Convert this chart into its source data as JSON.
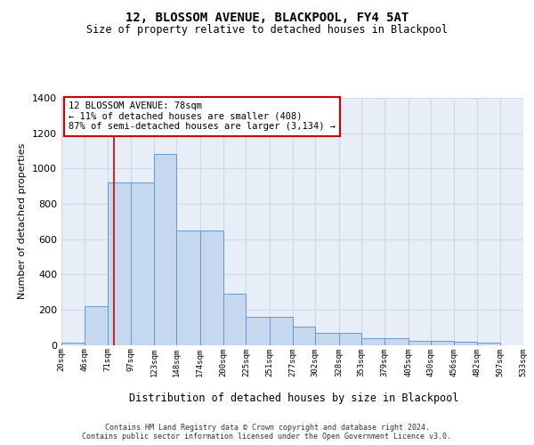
{
  "title1": "12, BLOSSOM AVENUE, BLACKPOOL, FY4 5AT",
  "title2": "Size of property relative to detached houses in Blackpool",
  "xlabel": "Distribution of detached houses by size in Blackpool",
  "ylabel": "Number of detached properties",
  "bar_values": [
    15,
    220,
    920,
    920,
    1080,
    650,
    650,
    290,
    160,
    160,
    105,
    68,
    68,
    38,
    38,
    22,
    22,
    18,
    15,
    0
  ],
  "bin_edges": [
    20,
    46,
    71,
    97,
    123,
    148,
    174,
    200,
    225,
    251,
    277,
    302,
    328,
    353,
    379,
    405,
    430,
    456,
    482,
    507,
    533
  ],
  "tick_labels": [
    "20sqm",
    "46sqm",
    "71sqm",
    "97sqm",
    "123sqm",
    "148sqm",
    "174sqm",
    "200sqm",
    "225sqm",
    "251sqm",
    "277sqm",
    "302sqm",
    "328sqm",
    "353sqm",
    "379sqm",
    "405sqm",
    "430sqm",
    "456sqm",
    "482sqm",
    "507sqm",
    "533sqm"
  ],
  "bar_color": "#c5d8f0",
  "bar_edge_color": "#6699cc",
  "grid_color": "#d0d8e8",
  "bg_color": "#e8eef8",
  "vline_x": 78,
  "vline_color": "#cc0000",
  "annotation_text": "12 BLOSSOM AVENUE: 78sqm\n← 11% of detached houses are smaller (408)\n87% of semi-detached houses are larger (3,134) →",
  "annotation_box_color": "#ffffff",
  "annotation_box_edge": "#cc0000",
  "footnote": "Contains HM Land Registry data © Crown copyright and database right 2024.\nContains public sector information licensed under the Open Government Licence v3.0.",
  "ylim": [
    0,
    1400
  ],
  "yticks": [
    0,
    200,
    400,
    600,
    800,
    1000,
    1200,
    1400
  ]
}
